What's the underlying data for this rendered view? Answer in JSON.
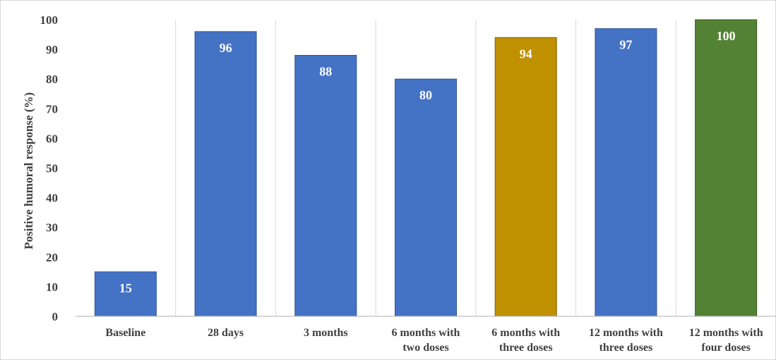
{
  "chart_data": {
    "type": "bar",
    "title": "",
    "xlabel": "",
    "ylabel": "Positive humoral response (%)",
    "ylim": [
      0,
      100
    ],
    "yticks": [
      0,
      10,
      20,
      30,
      40,
      50,
      60,
      70,
      80,
      90,
      100
    ],
    "categories": [
      [
        "Baseline"
      ],
      [
        "28 days"
      ],
      [
        "3 months"
      ],
      [
        "6 months with",
        "two doses"
      ],
      [
        "6 months with",
        "three doses"
      ],
      [
        "12 months with",
        "three doses"
      ],
      [
        "12 months with",
        "four doses"
      ]
    ],
    "values": [
      15,
      96,
      88,
      80,
      94,
      97,
      100
    ],
    "data_labels": [
      "15",
      "96",
      "88",
      "80",
      "94",
      "97",
      "100"
    ],
    "bar_colors": [
      "#4472c4",
      "#4472c4",
      "#4472c4",
      "#4472c4",
      "#bf9000",
      "#4472c4",
      "#548235"
    ],
    "bar_border_colors": [
      "#2f5597",
      "#2f5597",
      "#2f5597",
      "#2f5597",
      "#7f6000",
      "#2f5597",
      "#375623"
    ],
    "grid": "vertical category separators",
    "legend": "none"
  }
}
